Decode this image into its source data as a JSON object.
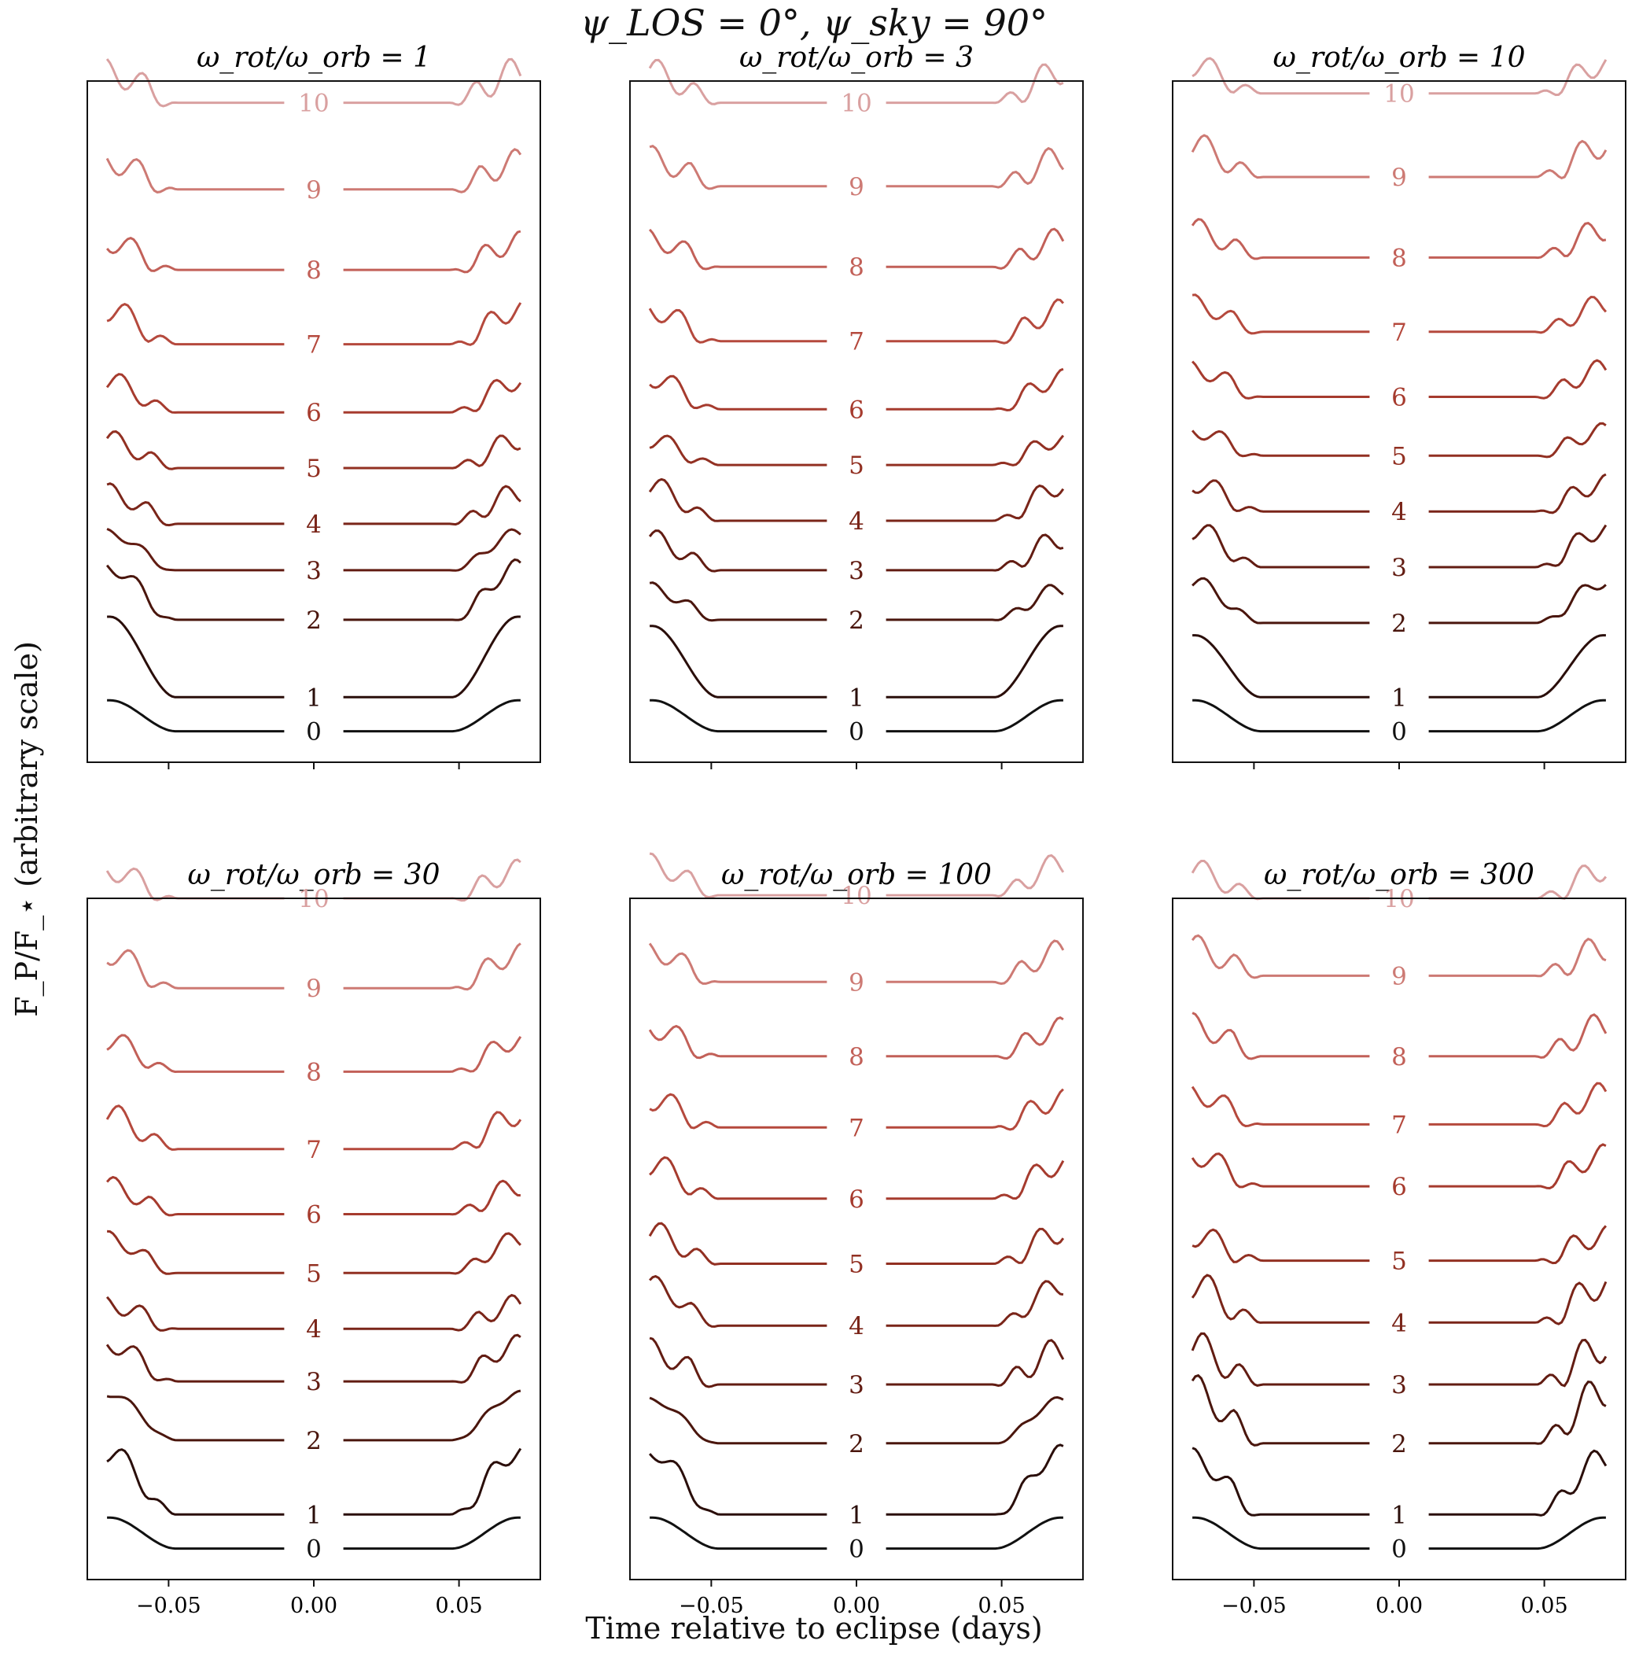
{
  "suptitle": "ψ_LOS = 0°, ψ_sky = 90°",
  "xlabel": "Time relative to eclipse (days)",
  "ylabel": "F_P/F_⋆ (arbitrary scale)",
  "chart_data": {
    "type": "line",
    "suptitle": "ψ_LOS = 0°, ψ_sky = 90°",
    "xlabel": "Time relative to eclipse (days)",
    "ylabel": "F_P/F_⋆ (arbitrary scale)",
    "xlim": [
      -0.078,
      0.078
    ],
    "xticks": [
      -0.05,
      0.0,
      0.05
    ],
    "xtick_labels": [
      "−0.05",
      "0.00",
      "0.05"
    ],
    "ylim": [
      -1,
      21
    ],
    "yticks_shown": false,
    "curve_labels": [
      "0",
      "1",
      "2",
      "3",
      "4",
      "5",
      "6",
      "7",
      "8",
      "9",
      "10"
    ],
    "colors": [
      "#111111",
      "#2a0e0a",
      "#4a160d",
      "#621c12",
      "#7a2519",
      "#923022",
      "#a63b2e",
      "#b5493d",
      "#c26058",
      "#cd7a74",
      "#d9a0a0"
    ],
    "panels": [
      {
        "title": "ω_rot/ω_orb = 1",
        "offsets": [
          0,
          1.1,
          3.6,
          5.2,
          6.7,
          8.5,
          10.3,
          12.5,
          14.9,
          17.5,
          20.3
        ],
        "amplitudes": [
          1.0,
          2.6,
          1.7,
          1.2,
          1.0,
          0.9,
          1.0,
          1.1,
          0.9,
          0.9,
          1.0
        ],
        "wiggles": [
          0,
          0,
          0.25,
          0.15,
          0.3,
          0.3,
          0.3,
          0.35,
          0.35,
          0.4,
          0.45
        ]
      },
      {
        "title": "ω_rot/ω_orb = 3",
        "offsets": [
          0,
          1.1,
          3.6,
          5.2,
          6.8,
          8.6,
          10.4,
          12.6,
          15.0,
          17.6,
          20.3
        ],
        "amplitudes": [
          1.0,
          2.3,
          1.0,
          1.0,
          1.1,
          0.8,
          1.0,
          1.0,
          0.9,
          0.9,
          1.0
        ],
        "wiggles": [
          0,
          0,
          0.2,
          0.3,
          0.3,
          0.25,
          0.3,
          0.35,
          0.35,
          0.4,
          0.4
        ]
      },
      {
        "title": "ω_rot/ω_orb = 10",
        "offsets": [
          0,
          1.1,
          3.5,
          5.3,
          7.1,
          8.9,
          10.8,
          12.9,
          15.3,
          17.9,
          20.6
        ],
        "amplitudes": [
          1.0,
          2.0,
          1.3,
          1.2,
          0.9,
          0.8,
          0.9,
          0.9,
          0.9,
          1.0,
          0.9
        ],
        "wiggles": [
          0,
          0,
          0.2,
          0.3,
          0.3,
          0.25,
          0.3,
          0.3,
          0.35,
          0.4,
          0.35
        ]
      },
      {
        "title": "ω_rot/ω_orb = 30",
        "offsets": [
          0,
          1.1,
          3.5,
          5.4,
          7.1,
          8.9,
          10.8,
          12.9,
          15.4,
          18.1,
          21.0
        ],
        "amplitudes": [
          1.0,
          2.0,
          1.5,
          1.2,
          0.8,
          1.1,
          0.9,
          1.1,
          1.0,
          1.1,
          0.9
        ],
        "wiggles": [
          0,
          0.3,
          0.1,
          0.3,
          0.3,
          0.25,
          0.3,
          0.35,
          0.3,
          0.35,
          0.35
        ]
      },
      {
        "title": "ω_rot/ω_orb = 100",
        "offsets": [
          0,
          1.1,
          3.4,
          5.3,
          7.2,
          9.2,
          11.3,
          13.6,
          15.9,
          18.3,
          21.1
        ],
        "amplitudes": [
          1.0,
          2.0,
          1.4,
          1.1,
          1.3,
          1.0,
          1.1,
          0.9,
          0.9,
          1.0,
          1.0
        ],
        "wiggles": [
          0,
          0.25,
          0.1,
          0.4,
          0.3,
          0.35,
          0.35,
          0.35,
          0.35,
          0.35,
          0.35
        ]
      },
      {
        "title": "ω_rot/ω_orb = 300",
        "offsets": [
          0,
          1.1,
          3.4,
          5.3,
          7.3,
          9.3,
          11.7,
          13.7,
          15.9,
          18.5,
          21.0
        ],
        "amplitudes": [
          1.0,
          1.8,
          1.7,
          1.2,
          1.2,
          0.8,
          1.0,
          1.0,
          1.0,
          0.9,
          0.9
        ],
        "wiggles": [
          0,
          0.35,
          0.5,
          0.5,
          0.45,
          0.35,
          0.35,
          0.35,
          0.4,
          0.4,
          0.35
        ]
      }
    ]
  }
}
